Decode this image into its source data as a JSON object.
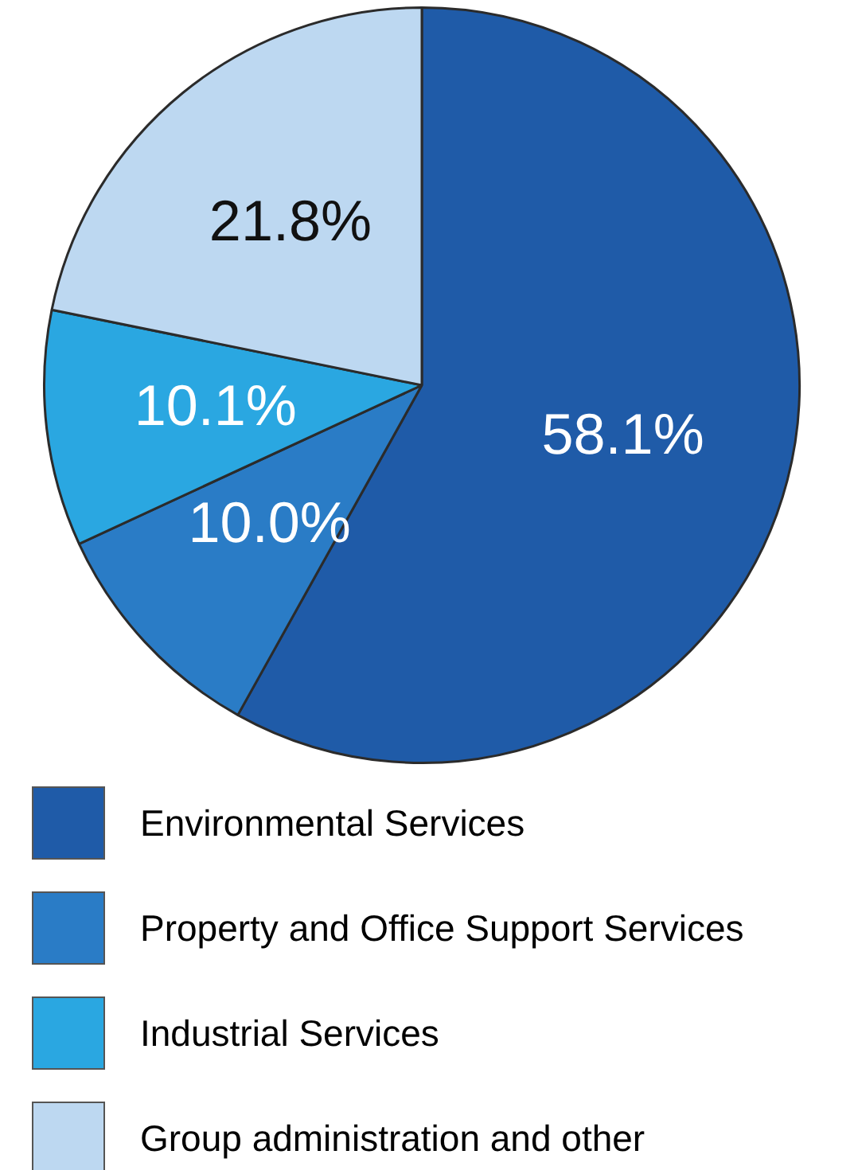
{
  "chart_data": {
    "type": "pie",
    "categories": [
      "Environmental Services",
      "Property and Office Support Services",
      "Industrial Services",
      "Group administration and other"
    ],
    "values": [
      58.1,
      10.0,
      10.1,
      21.8
    ],
    "colors": [
      "#1f5ba8",
      "#2a7cc6",
      "#2aa7e1",
      "#bdd8f1"
    ],
    "value_labels": [
      "58.1%",
      "10.0%",
      "10.1%",
      "21.8%"
    ],
    "legend": "bottom"
  }
}
